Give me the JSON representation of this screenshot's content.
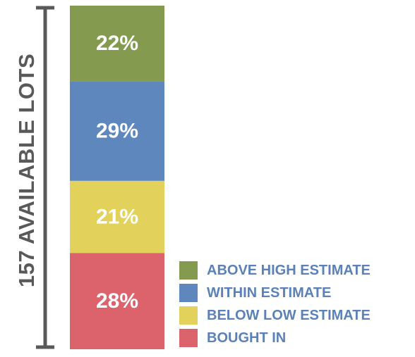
{
  "chart_data": {
    "type": "bar",
    "stacked": true,
    "title": "",
    "ylabel": "157 AVAILABLE LOTS",
    "segments": [
      {
        "name": "ABOVE HIGH ESTIMATE",
        "value": 22,
        "label": "22%",
        "color": "#849b4f"
      },
      {
        "name": "WITHIN ESTIMATE",
        "value": 29,
        "label": "29%",
        "color": "#5d87bd"
      },
      {
        "name": "BELOW LOW ESTIMATE",
        "value": 21,
        "label": "21%",
        "color": "#e2d25b"
      },
      {
        "name": "BOUGHT IN",
        "value": 28,
        "label": "28%",
        "color": "#dc626c"
      }
    ],
    "legend_position": "bottom-right",
    "legend_text_color": "#5a82b8",
    "axis_color": "#595959"
  }
}
